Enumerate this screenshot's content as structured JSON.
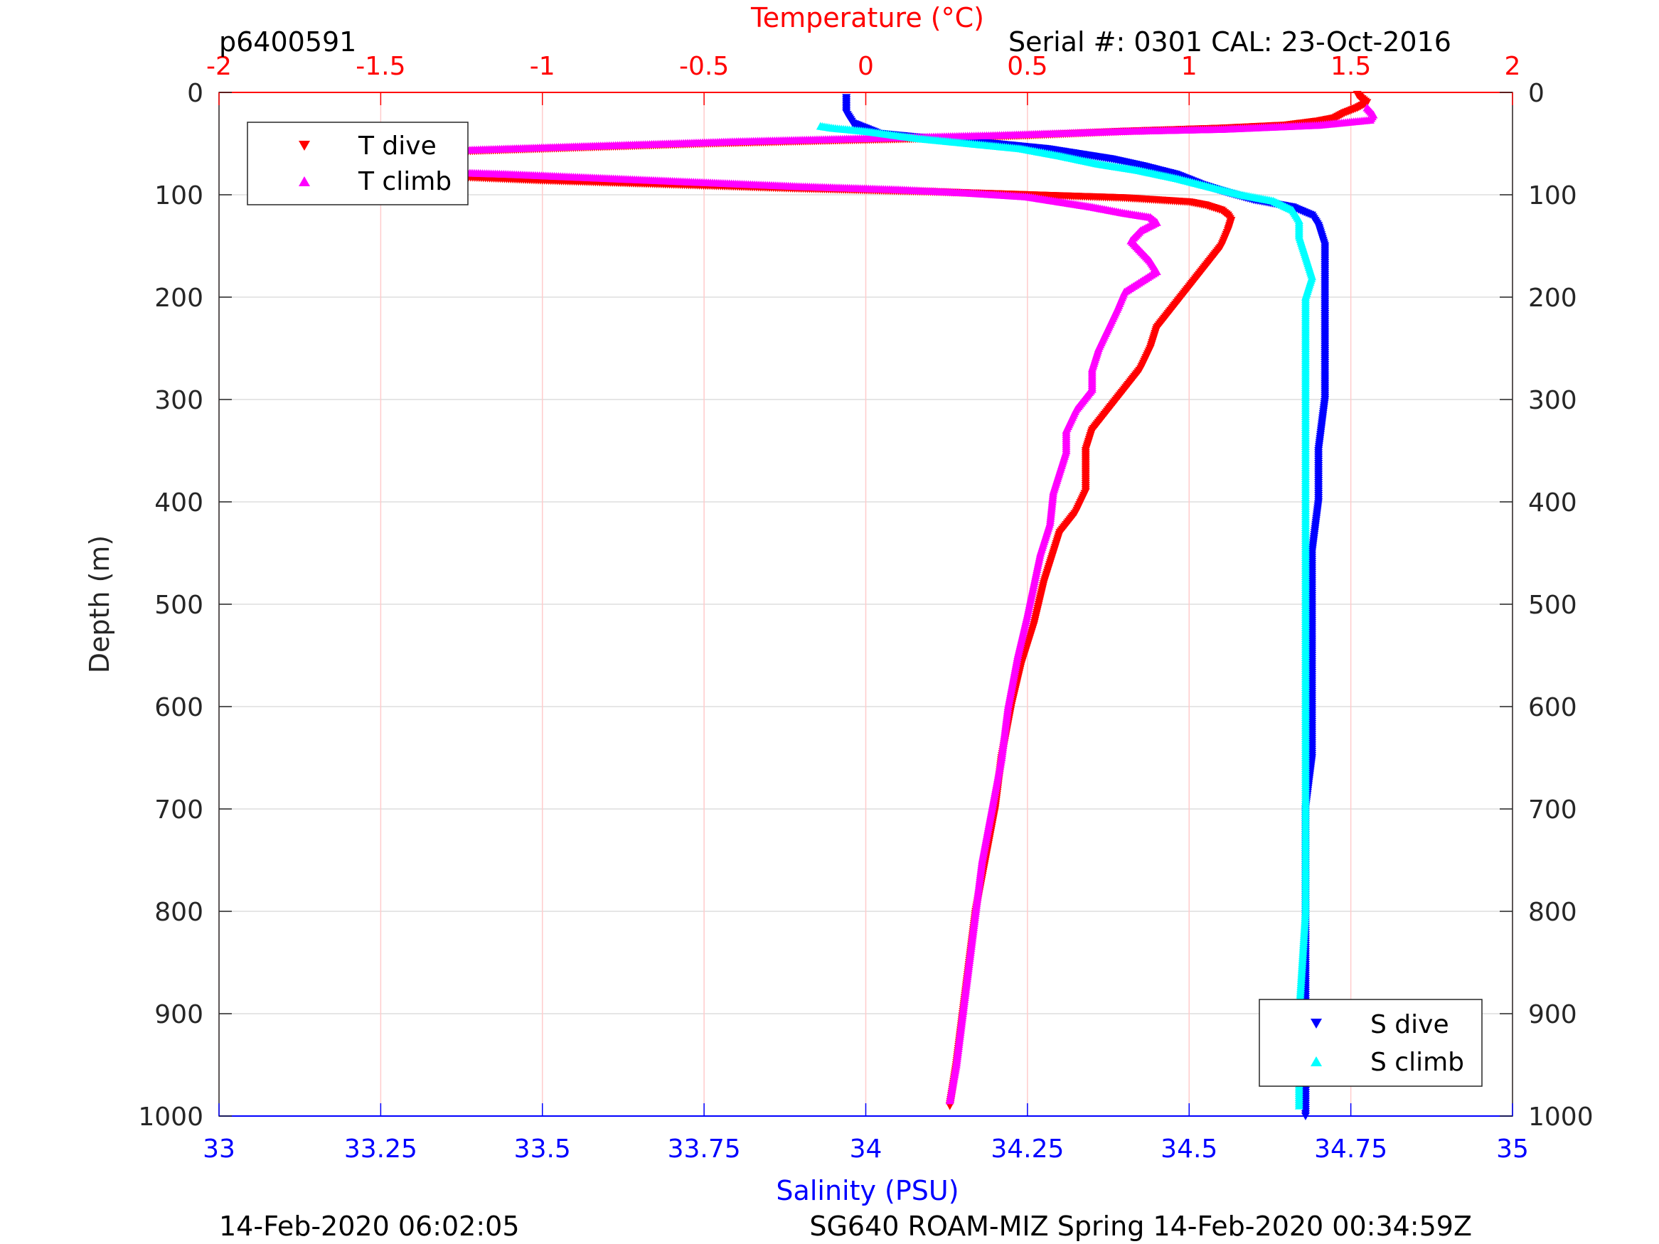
{
  "header": {
    "profile_id": "p6400591",
    "serial_cal": "Serial #: 0301  CAL: 23-Oct-2016"
  },
  "footer": {
    "left": "14-Feb-2020 06:02:05",
    "right": "SG640 ROAM-MIZ Spring 14-Feb-2020 00:34:59Z"
  },
  "colors": {
    "temperature_axis": "#ff0000",
    "salinity_axis": "#0000ff",
    "t_dive": "#ff0000",
    "t_climb": "#ff00ff",
    "s_dive": "#0000ff",
    "s_climb": "#00ffff",
    "grid_depth": "#dddddd",
    "grid_temperature": "#ffcccc"
  },
  "chart_data": {
    "type": "scatter",
    "top_axis": {
      "label": "Temperature (°C)",
      "range": [
        -2,
        2
      ],
      "ticks": [
        -2,
        -1.5,
        -1,
        -0.5,
        0,
        0.5,
        1,
        1.5,
        2
      ],
      "tick_labels": [
        "-2",
        "-1.5",
        "-1",
        "-0.5",
        "0",
        "0.5",
        "1",
        "1.5",
        "2"
      ]
    },
    "bottom_axis": {
      "label": "Salinity (PSU)",
      "range": [
        33,
        35
      ],
      "ticks": [
        33,
        33.25,
        33.5,
        33.75,
        34,
        34.25,
        34.5,
        34.75,
        35
      ],
      "tick_labels": [
        "33",
        "33.25",
        "33.5",
        "33.75",
        "34",
        "34.25",
        "34.5",
        "34.75",
        "35"
      ]
    },
    "y_axis": {
      "label": "Depth (m)",
      "range": [
        0,
        1000
      ],
      "reversed": true,
      "ticks": [
        0,
        100,
        200,
        300,
        400,
        500,
        600,
        700,
        800,
        900,
        1000
      ],
      "tick_labels": [
        "0",
        "100",
        "200",
        "300",
        "400",
        "500",
        "600",
        "700",
        "800",
        "900",
        "1000"
      ]
    },
    "grid": true,
    "legends": [
      {
        "placement": "top-left",
        "entries": [
          "T dive",
          "T climb"
        ]
      },
      {
        "placement": "bottom-right",
        "entries": [
          "S dive",
          "S climb"
        ]
      }
    ],
    "series": [
      {
        "name": "T dive",
        "axis": "temperature",
        "marker": "triangle-down",
        "points": [
          [
            1.52,
            2
          ],
          [
            1.53,
            5
          ],
          [
            1.55,
            10
          ],
          [
            1.52,
            15
          ],
          [
            1.48,
            20
          ],
          [
            1.45,
            25
          ],
          [
            1.4,
            28
          ],
          [
            1.3,
            32
          ],
          [
            1.1,
            35
          ],
          [
            0.8,
            38
          ],
          [
            0.5,
            42
          ],
          [
            0.2,
            45
          ],
          [
            -0.1,
            47
          ],
          [
            -0.5,
            50
          ],
          [
            -0.8,
            53
          ],
          [
            -1.1,
            56
          ],
          [
            -1.3,
            58
          ],
          [
            -1.5,
            60
          ],
          [
            -1.6,
            63
          ],
          [
            -1.65,
            66
          ],
          [
            -1.68,
            70
          ],
          [
            -1.65,
            75
          ],
          [
            -1.5,
            78
          ],
          [
            -1.3,
            82
          ],
          [
            -1.0,
            86
          ],
          [
            -0.6,
            90
          ],
          [
            -0.2,
            94
          ],
          [
            0.2,
            97
          ],
          [
            0.5,
            100
          ],
          [
            0.8,
            103
          ],
          [
            1.0,
            107
          ],
          [
            1.05,
            110
          ],
          [
            1.1,
            115
          ],
          [
            1.12,
            120
          ],
          [
            1.13,
            125
          ],
          [
            1.12,
            135
          ],
          [
            1.1,
            150
          ],
          [
            1.05,
            170
          ],
          [
            1.0,
            190
          ],
          [
            0.95,
            210
          ],
          [
            0.9,
            230
          ],
          [
            0.88,
            250
          ],
          [
            0.85,
            270
          ],
          [
            0.8,
            290
          ],
          [
            0.75,
            310
          ],
          [
            0.7,
            330
          ],
          [
            0.68,
            350
          ],
          [
            0.68,
            370
          ],
          [
            0.68,
            390
          ],
          [
            0.65,
            410
          ],
          [
            0.6,
            430
          ],
          [
            0.58,
            450
          ],
          [
            0.55,
            480
          ],
          [
            0.52,
            520
          ],
          [
            0.48,
            560
          ],
          [
            0.45,
            600
          ],
          [
            0.42,
            650
          ],
          [
            0.4,
            700
          ],
          [
            0.37,
            750
          ],
          [
            0.34,
            800
          ],
          [
            0.32,
            850
          ],
          [
            0.3,
            900
          ],
          [
            0.28,
            950
          ],
          [
            0.26,
            990
          ]
        ]
      },
      {
        "name": "T climb",
        "axis": "temperature",
        "marker": "triangle-up",
        "points": [
          [
            1.55,
            15
          ],
          [
            1.57,
            22
          ],
          [
            1.56,
            27
          ],
          [
            1.4,
            32
          ],
          [
            1.1,
            36
          ],
          [
            0.8,
            38
          ],
          [
            0.4,
            42
          ],
          [
            0.0,
            45
          ],
          [
            -0.4,
            48
          ],
          [
            -0.8,
            52
          ],
          [
            -1.1,
            55
          ],
          [
            -1.4,
            58
          ],
          [
            -1.55,
            62
          ],
          [
            -1.6,
            65
          ],
          [
            -1.62,
            70
          ],
          [
            -1.55,
            74
          ],
          [
            -1.4,
            77
          ],
          [
            -1.1,
            80
          ],
          [
            -0.8,
            84
          ],
          [
            -0.5,
            88
          ],
          [
            -0.2,
            92
          ],
          [
            0.1,
            95
          ],
          [
            0.3,
            98
          ],
          [
            0.5,
            102
          ],
          [
            0.6,
            107
          ],
          [
            0.7,
            112
          ],
          [
            0.8,
            118
          ],
          [
            0.88,
            122
          ],
          [
            0.9,
            127
          ],
          [
            0.85,
            135
          ],
          [
            0.82,
            145
          ],
          [
            0.85,
            155
          ],
          [
            0.88,
            165
          ],
          [
            0.9,
            175
          ],
          [
            0.85,
            185
          ],
          [
            0.8,
            195
          ],
          [
            0.78,
            210
          ],
          [
            0.75,
            230
          ],
          [
            0.72,
            250
          ],
          [
            0.7,
            270
          ],
          [
            0.7,
            290
          ],
          [
            0.65,
            310
          ],
          [
            0.62,
            330
          ],
          [
            0.62,
            350
          ],
          [
            0.6,
            370
          ],
          [
            0.58,
            390
          ],
          [
            0.57,
            420
          ],
          [
            0.54,
            450
          ],
          [
            0.52,
            480
          ],
          [
            0.5,
            510
          ],
          [
            0.47,
            550
          ],
          [
            0.44,
            600
          ],
          [
            0.42,
            650
          ],
          [
            0.39,
            700
          ],
          [
            0.36,
            750
          ],
          [
            0.34,
            800
          ],
          [
            0.32,
            850
          ],
          [
            0.3,
            900
          ],
          [
            0.28,
            950
          ],
          [
            0.26,
            985
          ]
        ]
      },
      {
        "name": "S dive",
        "axis": "salinity",
        "marker": "triangle-down",
        "points": [
          [
            33.97,
            5
          ],
          [
            33.97,
            20
          ],
          [
            33.98,
            30
          ],
          [
            34.02,
            40
          ],
          [
            34.1,
            45
          ],
          [
            34.2,
            50
          ],
          [
            34.28,
            55
          ],
          [
            34.33,
            60
          ],
          [
            34.38,
            65
          ],
          [
            34.43,
            72
          ],
          [
            34.48,
            80
          ],
          [
            34.52,
            90
          ],
          [
            34.56,
            98
          ],
          [
            34.6,
            105
          ],
          [
            34.66,
            112
          ],
          [
            34.69,
            120
          ],
          [
            34.7,
            130
          ],
          [
            34.71,
            150
          ],
          [
            34.71,
            180
          ],
          [
            34.71,
            220
          ],
          [
            34.71,
            260
          ],
          [
            34.71,
            300
          ],
          [
            34.7,
            350
          ],
          [
            34.7,
            400
          ],
          [
            34.69,
            450
          ],
          [
            34.69,
            500
          ],
          [
            34.69,
            550
          ],
          [
            34.69,
            600
          ],
          [
            34.69,
            650
          ],
          [
            34.68,
            700
          ],
          [
            34.68,
            800
          ],
          [
            34.68,
            900
          ],
          [
            34.68,
            1000
          ]
        ]
      },
      {
        "name": "S climb",
        "axis": "salinity",
        "marker": "triangle-up",
        "points": [
          [
            33.93,
            33
          ],
          [
            33.95,
            35
          ],
          [
            34.0,
            38
          ],
          [
            34.08,
            45
          ],
          [
            34.16,
            50
          ],
          [
            34.24,
            55
          ],
          [
            34.3,
            62
          ],
          [
            34.36,
            70
          ],
          [
            34.42,
            76
          ],
          [
            34.48,
            84
          ],
          [
            34.53,
            92
          ],
          [
            34.58,
            100
          ],
          [
            34.63,
            106
          ],
          [
            34.66,
            115
          ],
          [
            34.67,
            125
          ],
          [
            34.67,
            140
          ],
          [
            34.68,
            160
          ],
          [
            34.69,
            180
          ],
          [
            34.68,
            200
          ],
          [
            34.68,
            230
          ],
          [
            34.68,
            260
          ],
          [
            34.68,
            300
          ],
          [
            34.68,
            350
          ],
          [
            34.68,
            400
          ],
          [
            34.68,
            450
          ],
          [
            34.68,
            500
          ],
          [
            34.68,
            600
          ],
          [
            34.68,
            700
          ],
          [
            34.68,
            800
          ],
          [
            34.67,
            900
          ],
          [
            34.67,
            990
          ]
        ]
      }
    ]
  }
}
